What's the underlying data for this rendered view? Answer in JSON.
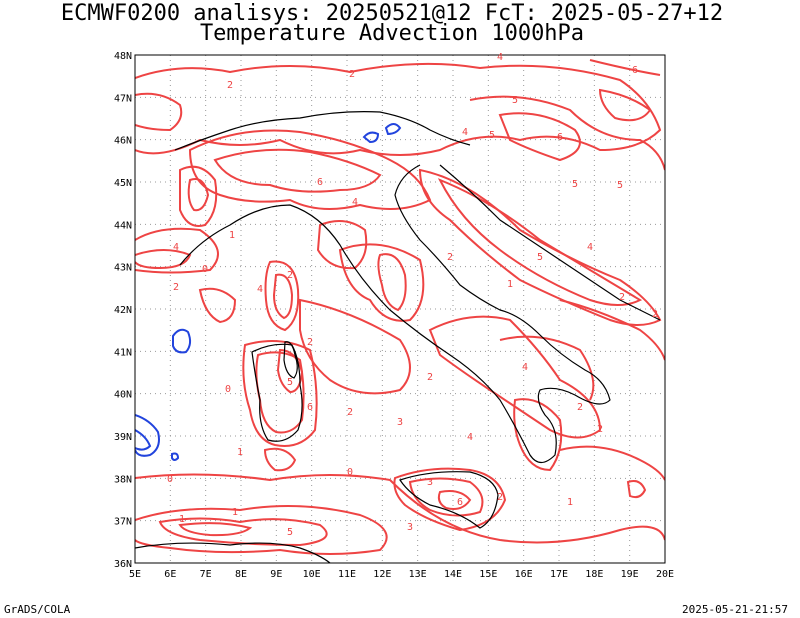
{
  "header": {
    "title_line1": "ECMWF0200 analisys: 20250521@12 FcT: 2025-05-27+12",
    "title_line2": "Temperature Advection 1000hPa"
  },
  "footer": {
    "left": "GrADS/COLA",
    "right": "2025-05-21-21:57"
  },
  "map": {
    "lon_range": [
      5,
      20
    ],
    "lat_range": [
      36,
      48
    ],
    "lon_labels": [
      "5E",
      "6E",
      "7E",
      "8E",
      "9E",
      "10E",
      "11E",
      "12E",
      "13E",
      "14E",
      "15E",
      "16E",
      "17E",
      "18E",
      "19E",
      "20E"
    ],
    "lat_labels": [
      "36N",
      "37N",
      "38N",
      "39N",
      "40N",
      "41N",
      "42N",
      "43N",
      "44N",
      "45N",
      "46N",
      "47N",
      "48N"
    ],
    "grid": "dotted",
    "positive_contour_color": "#ee3333",
    "negative_contour_color": "#2244dd",
    "coastline_color": "#000000",
    "contour_labels": [
      "1",
      "2",
      "3",
      "4",
      "5",
      "6",
      "0"
    ]
  }
}
